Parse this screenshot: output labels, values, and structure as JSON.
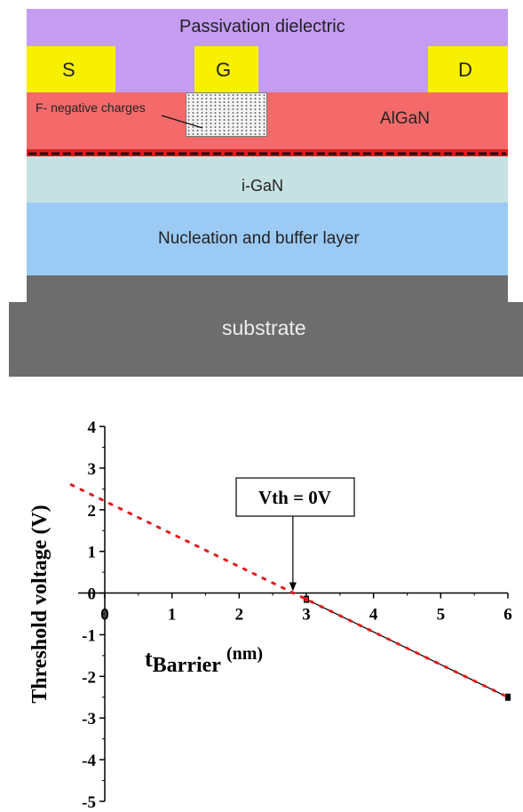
{
  "device": {
    "passivation_label": "Passivation dielectric",
    "source_label": "S",
    "gate_label": "G",
    "drain_label": "D",
    "fluorine_label": "F- negative charges",
    "algan_label": "AlGaN",
    "gan_label": "i-GaN",
    "buffer_label": "Nucleation and buffer layer",
    "substrate_label": "substrate",
    "colors": {
      "passivation": "#c49cf0",
      "contact": "#f7f000",
      "algan": "#f46a6a",
      "two_deg": "#e11b1b",
      "gan": "#c6e1e1",
      "buffer": "#9bcaf5",
      "substrate": "#6d6d6d",
      "frame": "#5e5e5e"
    }
  },
  "chart_data": {
    "type": "line",
    "xlabel_main": "t",
    "xlabel_sub": "Barrier",
    "xlabel_unit": "(nm)",
    "ylabel": "Threshold voltage (V)",
    "xlim": [
      0,
      6
    ],
    "ylim": [
      -5,
      4
    ],
    "xticks": [
      0,
      1,
      2,
      3,
      4,
      5,
      6
    ],
    "yticks": [
      4,
      3,
      2,
      1,
      0,
      -1,
      -2,
      -3,
      -4,
      -5
    ],
    "annotation": "Vth = 0V",
    "series": [
      {
        "style": "solid-black",
        "x": [
          3,
          6
        ],
        "y": [
          -0.15,
          -2.5
        ]
      },
      {
        "style": "dotted-red",
        "x": [
          -0.5,
          3,
          6
        ],
        "y": [
          2.6,
          -0.15,
          -2.5
        ]
      }
    ],
    "colors": {
      "fit": "#e21b1b",
      "data": "#000000"
    }
  }
}
